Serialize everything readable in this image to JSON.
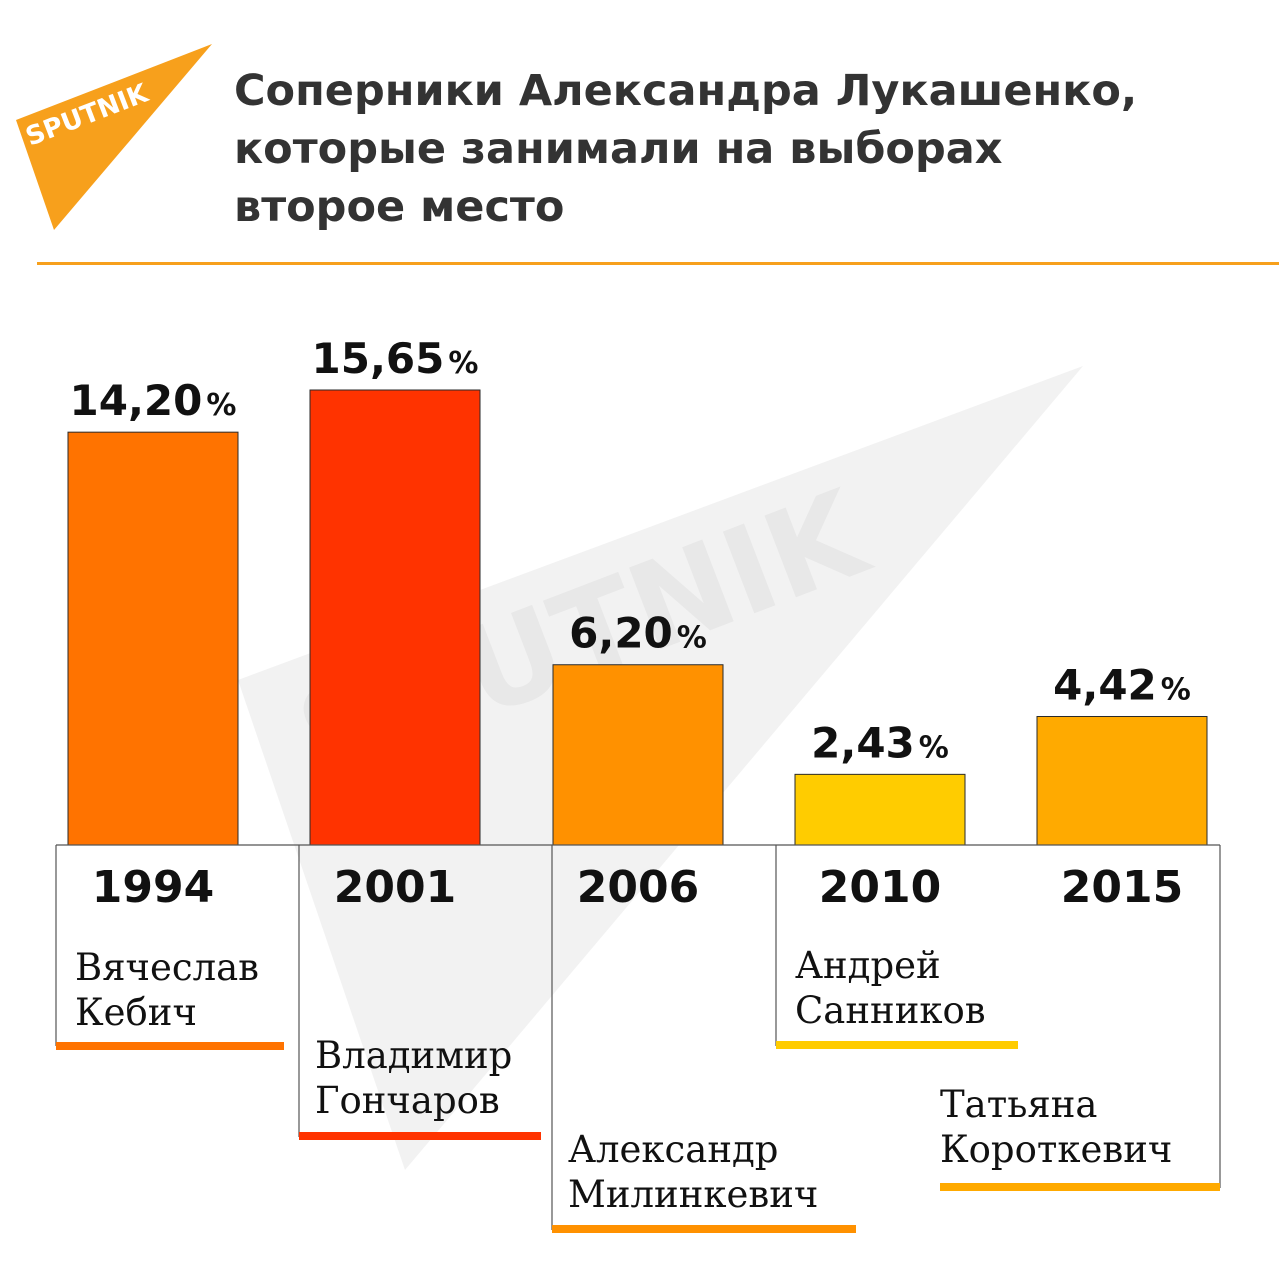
{
  "brand": {
    "logo_text": "SPUTNIK",
    "watermark_text": "SPUTNIK",
    "color": "#f7a01c"
  },
  "title_lines": [
    "Соперники Александра Лукашенко,",
    "которые занимали на выборах",
    "второе место"
  ],
  "chart_data": {
    "type": "bar",
    "categories": [
      "1994",
      "2001",
      "2006",
      "2010",
      "2015"
    ],
    "values": [
      14.2,
      15.65,
      6.2,
      2.43,
      4.42
    ],
    "value_labels": [
      "14,20",
      "15,65",
      "6,20",
      "2,43",
      "4,42"
    ],
    "unit": "%",
    "candidates": [
      [
        "Вячеслав",
        "Кебич"
      ],
      [
        "Владимир",
        "Гончаров"
      ],
      [
        "Александр",
        "Милинкевич"
      ],
      [
        "Андрей",
        "Санников"
      ],
      [
        "Татьяна",
        "Короткевич"
      ]
    ],
    "colors": [
      "#ff7300",
      "#ff3300",
      "#ff9100",
      "#ffcc00",
      "#ffaa00"
    ],
    "ylim": [
      0,
      15.65
    ]
  }
}
